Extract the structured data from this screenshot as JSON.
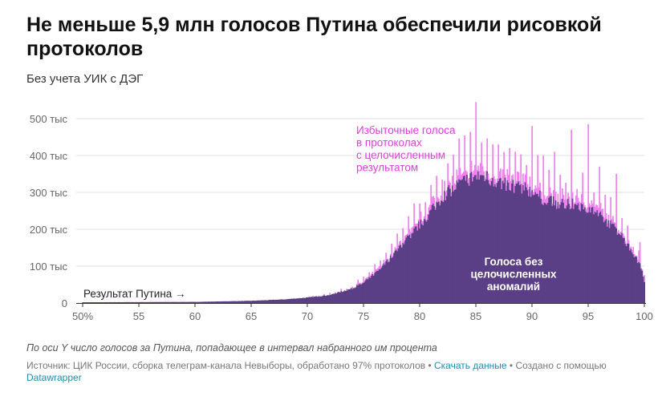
{
  "header": {
    "title": "Не меньше 5,9 млн голосов Путина обеспечили рисовкой протоколов",
    "subtitle": "Без учета УИК с ДЭГ"
  },
  "footer": {
    "notes": "По оси Y число голосов за Путина, попадающее в интервал набранного им процента",
    "source_text": "Источник: ЦИК России, сборка телеграм-канала Невыборы, обработано 97% протоколов •",
    "download_link": "Скачать данные",
    "created_text": "• Создано с помощью",
    "tool_link": "Datawrapper"
  },
  "colors": {
    "integer_excess": "#ee82ee",
    "base": "#5b3f86",
    "annotation_pink": "#e03ce0",
    "gridline": "#e2e2e2"
  },
  "chart_data": {
    "type": "bar",
    "xlim": [
      50,
      100
    ],
    "ylim": [
      0,
      500000
    ],
    "x_ticks": [
      {
        "value": 50,
        "label": "50%"
      },
      {
        "value": 55,
        "label": "55"
      },
      {
        "value": 60,
        "label": "60"
      },
      {
        "value": 65,
        "label": "65"
      },
      {
        "value": 70,
        "label": "70"
      },
      {
        "value": 75,
        "label": "75"
      },
      {
        "value": 80,
        "label": "80"
      },
      {
        "value": 85,
        "label": "85"
      },
      {
        "value": 90,
        "label": "90"
      },
      {
        "value": 95,
        "label": "95"
      },
      {
        "value": 100,
        "label": "100"
      }
    ],
    "y_ticks": [
      {
        "value": 0,
        "label": "0"
      },
      {
        "value": 100000,
        "label": "100 тыс"
      },
      {
        "value": 200000,
        "label": "200 тыс"
      },
      {
        "value": 300000,
        "label": "300 тыс"
      },
      {
        "value": 400000,
        "label": "400 тыс"
      },
      {
        "value": 500000,
        "label": "500 тыс"
      }
    ],
    "grid": true,
    "series": [
      {
        "name": "Голоса без целочисленных аномалий",
        "color": "#5b3f86"
      },
      {
        "name": "Избыточные голоса в протоколах с целочисленным результатом",
        "color": "#ee82ee"
      }
    ],
    "bin_width": 0.1,
    "base_profile": [
      [
        50,
        2000
      ],
      [
        55,
        2500
      ],
      [
        60,
        3000
      ],
      [
        65,
        6000
      ],
      [
        68,
        10000
      ],
      [
        70,
        15000
      ],
      [
        72,
        22000
      ],
      [
        74,
        40000
      ],
      [
        75,
        55000
      ],
      [
        76,
        80000
      ],
      [
        77,
        110000
      ],
      [
        78,
        145000
      ],
      [
        79,
        180000
      ],
      [
        80,
        215000
      ],
      [
        81,
        250000
      ],
      [
        82,
        290000
      ],
      [
        83,
        315000
      ],
      [
        84,
        335000
      ],
      [
        85,
        350000
      ],
      [
        86,
        345000
      ],
      [
        87,
        330000
      ],
      [
        88,
        320000
      ],
      [
        89,
        320000
      ],
      [
        90,
        305000
      ],
      [
        91,
        285000
      ],
      [
        92,
        275000
      ],
      [
        93,
        270000
      ],
      [
        94,
        270000
      ],
      [
        95,
        260000
      ],
      [
        96,
        240000
      ],
      [
        97,
        215000
      ],
      [
        98,
        185000
      ],
      [
        99,
        135000
      ],
      [
        99.5,
        110000
      ],
      [
        99.8,
        90000
      ],
      [
        100,
        60000
      ]
    ],
    "spikes": [
      {
        "x": 85,
        "total": 545000
      },
      {
        "x": 95,
        "total": 485000
      },
      {
        "x": 88,
        "total": 420000
      },
      {
        "x": 90,
        "total": 480000
      },
      {
        "x": 93.5,
        "total": 470000
      },
      {
        "x": 86.5,
        "total": 430000
      },
      {
        "x": 91,
        "total": 400000
      },
      {
        "x": 92,
        "total": 410000
      },
      {
        "x": 96,
        "total": 370000
      },
      {
        "x": 97.5,
        "total": 350000
      },
      {
        "x": 82.5,
        "total": 340000
      },
      {
        "x": 80,
        "total": 270000
      },
      {
        "x": 99.6,
        "total": 165000
      }
    ],
    "annotations": [
      {
        "lines": [
          "Избыточные голоса",
          "в протоколах",
          "с целочисленным",
          "результатом"
        ],
        "color": "#e03ce0"
      },
      {
        "lines": [
          "Голоса без",
          "целочисленных",
          "аномалий"
        ],
        "color": "#ffffff"
      },
      {
        "lines": [
          "Результат Путина →"
        ],
        "color": "#222222"
      }
    ]
  }
}
